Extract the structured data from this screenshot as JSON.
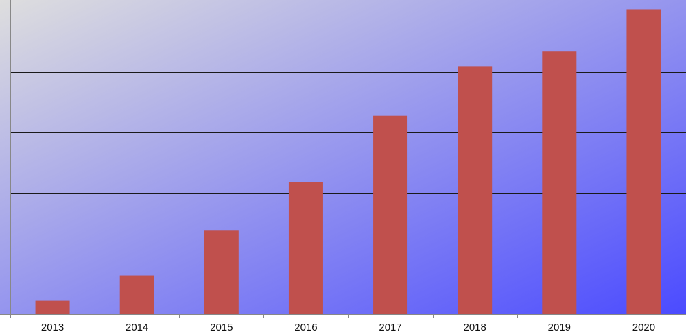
{
  "chart_data": {
    "type": "bar",
    "categories": [
      "2013",
      "2014",
      "2015",
      "2016",
      "2017",
      "2018",
      "2019",
      "2020"
    ],
    "values": [
      1.1,
      3.2,
      6.9,
      10.9,
      16.4,
      20.5,
      21.7,
      25.2
    ],
    "title": "",
    "xlabel": "",
    "ylabel": "",
    "ylim": [
      0,
      25
    ],
    "grid": true,
    "legend": "none",
    "colors": {
      "bar": "#c0504d",
      "gridline": "#1a1a1a",
      "axis": "#888888",
      "background_start": "#dedede",
      "background_end": "#4b4bff"
    }
  }
}
